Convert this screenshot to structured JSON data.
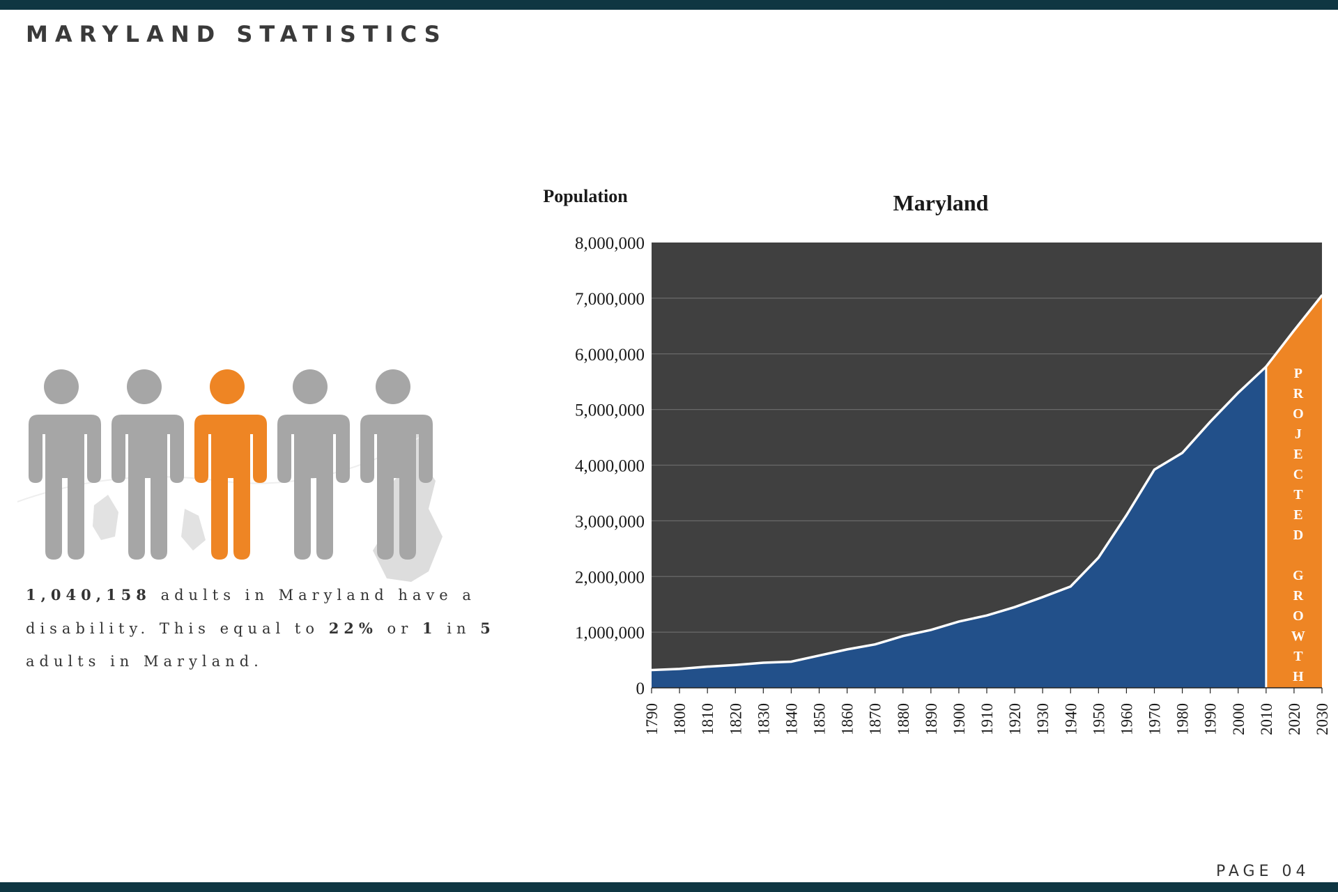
{
  "header": {
    "title": "MARYLAND STATISTICS"
  },
  "footer": {
    "page_label": "PAGE 04"
  },
  "stat": {
    "count": "1,040,158",
    "text_1": " adults in Maryland have a disability. This equal to ",
    "percent": "22%",
    "text_2": " or ",
    "one": "1",
    "text_3": " in ",
    "five": "5",
    "text_4": " adults in Maryland."
  },
  "figures": {
    "count": 5,
    "highlight_index": 2,
    "gray_color": "#a6a6a6",
    "highlight_color": "#ee8524",
    "icon": "person-icon"
  },
  "chart_data": {
    "type": "area",
    "title": "Maryland",
    "ylabel": "Population",
    "xlabel": "",
    "ylim": [
      0,
      8000000
    ],
    "yticks": [
      "0",
      "1,000,000",
      "2,000,000",
      "3,000,000",
      "4,000,000",
      "5,000,000",
      "6,000,000",
      "7,000,000",
      "8,000,000"
    ],
    "x": [
      "1790",
      "1800",
      "1810",
      "1820",
      "1830",
      "1840",
      "1850",
      "1860",
      "1870",
      "1880",
      "1890",
      "1900",
      "1910",
      "1920",
      "1930",
      "1940",
      "1950",
      "1960",
      "1970",
      "1980",
      "1990",
      "2000",
      "2010",
      "2020",
      "2030"
    ],
    "values": [
      320000,
      340000,
      380000,
      410000,
      450000,
      470000,
      580000,
      690000,
      780000,
      930000,
      1040000,
      1190000,
      1300000,
      1450000,
      1630000,
      1820000,
      2340000,
      3100000,
      3920000,
      4220000,
      4780000,
      5300000,
      5770000,
      6420000,
      7050000
    ],
    "projected_from": "2010",
    "projected_label": "PROJECTED GROWTH",
    "grid": true,
    "colors": {
      "background": "#404040",
      "area": "#22508a",
      "projected": "#ee8524",
      "line": "#ffffff",
      "grid": "#6a6a6a"
    }
  }
}
